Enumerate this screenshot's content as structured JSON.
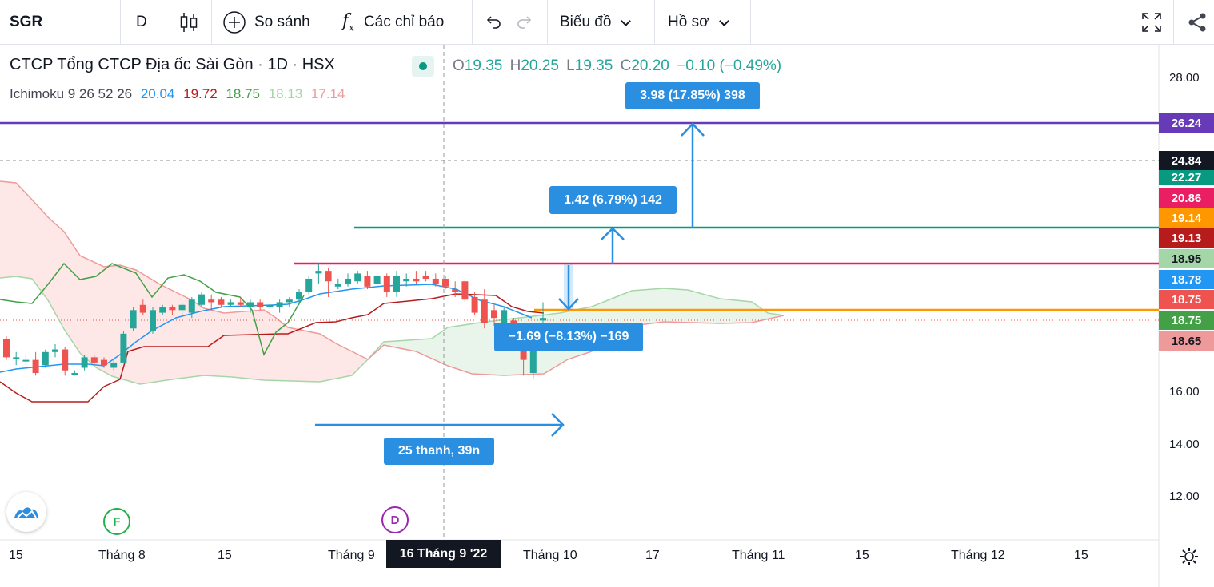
{
  "toolbar": {
    "symbol": "SGR",
    "interval": "D",
    "compare": "So sánh",
    "indicators": "Các chỉ báo",
    "chart_type": "Biểu đồ",
    "profile": "Hồ sơ"
  },
  "legend": {
    "name": "CTCP Tổng CTCP Địa ốc Sài Gòn",
    "interval": "1D",
    "exchange": "HSX",
    "o_label": "O",
    "o": "19.35",
    "h_label": "H",
    "h": "20.25",
    "l_label": "L",
    "l": "19.35",
    "c_label": "C",
    "c": "20.20",
    "change": "−0.10 (−0.49%)"
  },
  "indicator": {
    "name": "Ichimoku 9 26 52 26",
    "v1": "20.04",
    "v2": "19.72",
    "v3": "18.75",
    "v4": "18.13",
    "v5": "17.14"
  },
  "price_tags": [
    {
      "label": "26.24",
      "color": "#673ab7"
    },
    {
      "label": "24.84",
      "color": "#131722"
    },
    {
      "label": "22.27",
      "color": "#089981"
    },
    {
      "label": "20.86",
      "color": "#e91e63"
    },
    {
      "label": "19.14",
      "color": "#ff9800"
    },
    {
      "label": "19.13",
      "color": "#b71c1c"
    },
    {
      "label": "18.95",
      "color": "#a5d6a7"
    },
    {
      "label": "18.78",
      "color": "#2196f3"
    },
    {
      "label": "18.75",
      "color": "#ef5350"
    },
    {
      "label": "18.75",
      "color": "#43a047"
    },
    {
      "label": "18.65",
      "color": "#ef9a9a"
    }
  ],
  "measure_labels": {
    "top": "3.98 (17.85%) 398",
    "mid": "1.42 (6.79%) 142",
    "low": "−1.69 (−8.13%) −169",
    "range": "25 thanh, 39n"
  },
  "events": [
    {
      "letter": "F",
      "color": "#22b14c"
    },
    {
      "letter": "D",
      "color": "#9c27b0"
    }
  ],
  "crosshair_date": "16 Tháng 9 '22",
  "chart_data": {
    "type": "candlestick",
    "symbol": "SGR",
    "y_axis": {
      "ticks": [
        28.0,
        16.0,
        14.0,
        12.0
      ]
    },
    "x_axis": {
      "ticks": [
        "15",
        "Tháng 8",
        "15",
        "Tháng 9",
        "Tháng 10",
        "17",
        "Tháng 11",
        "15",
        "Tháng 12",
        "15"
      ]
    },
    "candles": [
      {
        "o": 18.0,
        "h": 18.1,
        "l": 17.2,
        "c": 17.3
      },
      {
        "o": 17.3,
        "h": 17.5,
        "l": 17.0,
        "c": 17.3
      },
      {
        "o": 17.2,
        "h": 17.4,
        "l": 17.0,
        "c": 17.2
      },
      {
        "o": 17.2,
        "h": 17.5,
        "l": 16.6,
        "c": 16.7
      },
      {
        "o": 17.0,
        "h": 17.6,
        "l": 16.9,
        "c": 17.5
      },
      {
        "o": 17.5,
        "h": 17.8,
        "l": 17.3,
        "c": 17.6
      },
      {
        "o": 17.6,
        "h": 17.7,
        "l": 16.6,
        "c": 16.8
      },
      {
        "o": 16.7,
        "h": 16.8,
        "l": 16.6,
        "c": 16.7
      },
      {
        "o": 16.9,
        "h": 17.4,
        "l": 16.8,
        "c": 17.3
      },
      {
        "o": 17.3,
        "h": 17.4,
        "l": 17.0,
        "c": 17.1
      },
      {
        "o": 17.2,
        "h": 17.3,
        "l": 16.9,
        "c": 17.0
      },
      {
        "o": 16.9,
        "h": 17.2,
        "l": 16.8,
        "c": 17.1
      },
      {
        "o": 17.1,
        "h": 18.3,
        "l": 17.1,
        "c": 18.2
      },
      {
        "o": 18.4,
        "h": 19.2,
        "l": 18.3,
        "c": 19.1
      },
      {
        "o": 19.3,
        "h": 19.5,
        "l": 18.9,
        "c": 19.0
      },
      {
        "o": 18.3,
        "h": 19.2,
        "l": 18.2,
        "c": 19.1
      },
      {
        "o": 19.0,
        "h": 19.3,
        "l": 18.9,
        "c": 19.2
      },
      {
        "o": 19.2,
        "h": 19.3,
        "l": 18.9,
        "c": 19.1
      },
      {
        "o": 19.1,
        "h": 19.4,
        "l": 18.9,
        "c": 19.3
      },
      {
        "o": 19.0,
        "h": 19.6,
        "l": 18.8,
        "c": 19.5
      },
      {
        "o": 19.3,
        "h": 19.8,
        "l": 19.2,
        "c": 19.7
      },
      {
        "o": 19.5,
        "h": 19.7,
        "l": 19.1,
        "c": 19.4
      },
      {
        "o": 19.5,
        "h": 19.6,
        "l": 19.2,
        "c": 19.3
      },
      {
        "o": 19.3,
        "h": 19.5,
        "l": 19.2,
        "c": 19.4
      },
      {
        "o": 19.4,
        "h": 19.6,
        "l": 19.2,
        "c": 19.3
      },
      {
        "o": 19.2,
        "h": 19.5,
        "l": 19.0,
        "c": 19.4
      },
      {
        "o": 19.4,
        "h": 19.5,
        "l": 19.1,
        "c": 19.2
      },
      {
        "o": 19.2,
        "h": 19.4,
        "l": 19.0,
        "c": 19.3
      },
      {
        "o": 19.2,
        "h": 19.5,
        "l": 19.0,
        "c": 19.4
      },
      {
        "o": 19.4,
        "h": 19.6,
        "l": 19.2,
        "c": 19.5
      },
      {
        "o": 19.5,
        "h": 19.9,
        "l": 19.3,
        "c": 19.8
      },
      {
        "o": 19.8,
        "h": 20.4,
        "l": 19.7,
        "c": 20.3
      },
      {
        "o": 20.5,
        "h": 20.9,
        "l": 20.1,
        "c": 20.6
      },
      {
        "o": 20.6,
        "h": 20.7,
        "l": 19.6,
        "c": 20.2
      },
      {
        "o": 20.0,
        "h": 20.3,
        "l": 19.9,
        "c": 20.1
      },
      {
        "o": 20.1,
        "h": 20.5,
        "l": 20.0,
        "c": 20.3
      },
      {
        "o": 20.2,
        "h": 20.6,
        "l": 20.1,
        "c": 20.5
      },
      {
        "o": 20.4,
        "h": 20.6,
        "l": 19.9,
        "c": 20.0
      },
      {
        "o": 20.1,
        "h": 20.5,
        "l": 20.0,
        "c": 20.4
      },
      {
        "o": 20.4,
        "h": 20.5,
        "l": 19.6,
        "c": 19.8
      },
      {
        "o": 19.8,
        "h": 20.6,
        "l": 19.6,
        "c": 20.4
      },
      {
        "o": 20.2,
        "h": 20.5,
        "l": 20.0,
        "c": 20.3
      },
      {
        "o": 20.3,
        "h": 20.6,
        "l": 20.1,
        "c": 20.2
      },
      {
        "o": 20.4,
        "h": 20.6,
        "l": 20.2,
        "c": 20.3
      },
      {
        "o": 20.3,
        "h": 20.5,
        "l": 20.0,
        "c": 20.1
      },
      {
        "o": 20.3,
        "h": 20.4,
        "l": 19.9,
        "c": 20.0
      },
      {
        "o": 19.9,
        "h": 20.2,
        "l": 19.6,
        "c": 19.8
      },
      {
        "o": 20.2,
        "h": 20.3,
        "l": 19.4,
        "c": 19.5
      },
      {
        "o": 19.6,
        "h": 19.8,
        "l": 18.9,
        "c": 19.0
      },
      {
        "o": 19.5,
        "h": 19.9,
        "l": 18.4,
        "c": 18.6
      },
      {
        "o": 19.1,
        "h": 19.3,
        "l": 18.5,
        "c": 18.8
      },
      {
        "o": 18.6,
        "h": 19.2,
        "l": 18.5,
        "c": 19.1
      },
      {
        "o": 18.7,
        "h": 18.8,
        "l": 18.1,
        "c": 18.2
      },
      {
        "o": 18.2,
        "h": 18.3,
        "l": 16.6,
        "c": 17.2
      },
      {
        "o": 16.7,
        "h": 17.9,
        "l": 16.5,
        "c": 17.8
      },
      {
        "o": 18.7,
        "h": 19.4,
        "l": 18.5,
        "c": 18.8
      }
    ],
    "lines": [
      {
        "name": "Ichimoku 9 26 52 26",
        "value": 20.04,
        "color": "#2196f3"
      },
      {
        "value": 19.72,
        "color": "#b71c1c"
      },
      {
        "value": 18.75,
        "color": "#43a047"
      },
      {
        "value": 18.13,
        "color": "#a5d6a7"
      },
      {
        "value": 17.14,
        "color": "#ef9a9a"
      }
    ],
    "horizontal_levels": [
      26.24,
      24.84,
      22.27,
      20.86,
      19.14,
      18.75
    ],
    "price_range_measures": [
      {
        "change": 3.98,
        "percent": 17.85,
        "ticks": 398
      },
      {
        "change": 1.42,
        "percent": 6.79,
        "ticks": 142
      },
      {
        "change": -1.69,
        "percent": -8.13,
        "ticks": -169
      }
    ],
    "date_range_measure": {
      "bars": 25,
      "days": 39
    },
    "colors": {
      "up": "#26a69a",
      "down": "#ef5350"
    }
  }
}
